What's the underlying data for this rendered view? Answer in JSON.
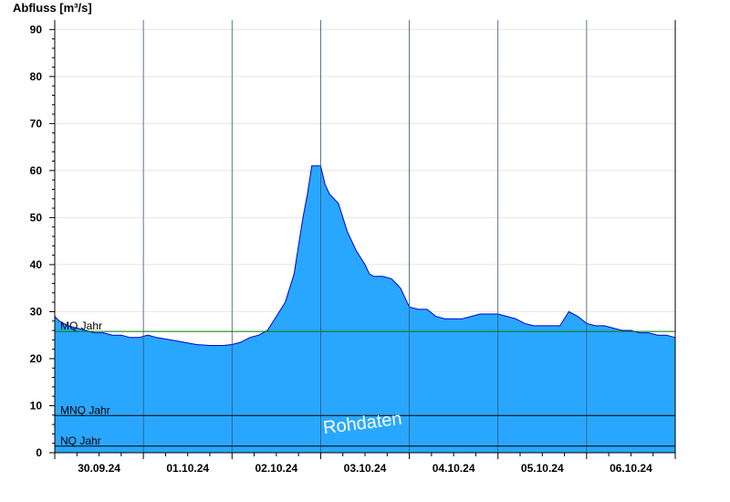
{
  "chart_data": {
    "type": "area",
    "ylabel": "Abfluss [m³/s]",
    "ylim": [
      0,
      92
    ],
    "yticks": [
      0,
      10,
      20,
      30,
      40,
      50,
      60,
      70,
      80,
      90
    ],
    "grid": true,
    "x_days": [
      "30.09.24",
      "01.10.24",
      "02.10.24",
      "03.10.24",
      "04.10.24",
      "05.10.24",
      "06.10.24"
    ],
    "xlim_days": [
      0,
      7
    ],
    "fill_color": "#29a7ff",
    "line_color": "#0000cc",
    "series": [
      {
        "x": [
          0,
          0.05,
          0.15,
          0.25,
          0.35,
          0.45,
          0.55,
          0.65,
          0.75,
          0.85,
          0.95,
          1.05,
          1.15,
          1.3,
          1.45,
          1.6,
          1.75,
          1.9,
          2.0,
          2.1,
          2.2,
          2.3,
          2.4,
          2.5,
          2.6,
          2.7,
          2.75,
          2.8,
          2.85,
          2.9,
          3.0,
          3.05,
          3.1,
          3.2,
          3.3,
          3.4,
          3.5,
          3.55,
          3.6,
          3.7,
          3.8,
          3.9,
          4.0,
          4.1,
          4.2,
          4.3,
          4.4,
          4.5,
          4.6,
          4.7,
          4.8,
          4.9,
          5.0,
          5.1,
          5.2,
          5.3,
          5.4,
          5.5,
          5.6,
          5.7,
          5.8,
          5.9,
          6.0,
          6.1,
          6.2,
          6.3,
          6.4,
          6.5,
          6.6,
          6.7,
          6.8,
          6.9,
          7.0
        ],
        "y": [
          29,
          28,
          27,
          26.5,
          26,
          25.5,
          25.5,
          25,
          25,
          24.5,
          24.5,
          25,
          24.5,
          24,
          23.5,
          23,
          22.8,
          22.8,
          23,
          23.5,
          24.5,
          25,
          26,
          29,
          32,
          38,
          44,
          50,
          55,
          61,
          61,
          57,
          55,
          53,
          47,
          43,
          40,
          38,
          37.5,
          37.5,
          37,
          35,
          31,
          30.5,
          30.5,
          29,
          28.5,
          28.5,
          28.5,
          29,
          29.5,
          29.5,
          29.5,
          29,
          28.5,
          27.5,
          27,
          27,
          27,
          27,
          30,
          29,
          27.5,
          27,
          27,
          26.5,
          26,
          26,
          25.5,
          25.5,
          25,
          25,
          24.5
        ]
      }
    ],
    "reference_lines": [
      {
        "label": "MQ Jahr",
        "value": 25.8,
        "color": "#007700"
      },
      {
        "label": "MNQ Jahr",
        "value": 7.9,
        "color": "#000000"
      },
      {
        "label": "NQ Jahr",
        "value": 1.4,
        "color": "#000000"
      }
    ],
    "annotation": "Rohdaten"
  }
}
